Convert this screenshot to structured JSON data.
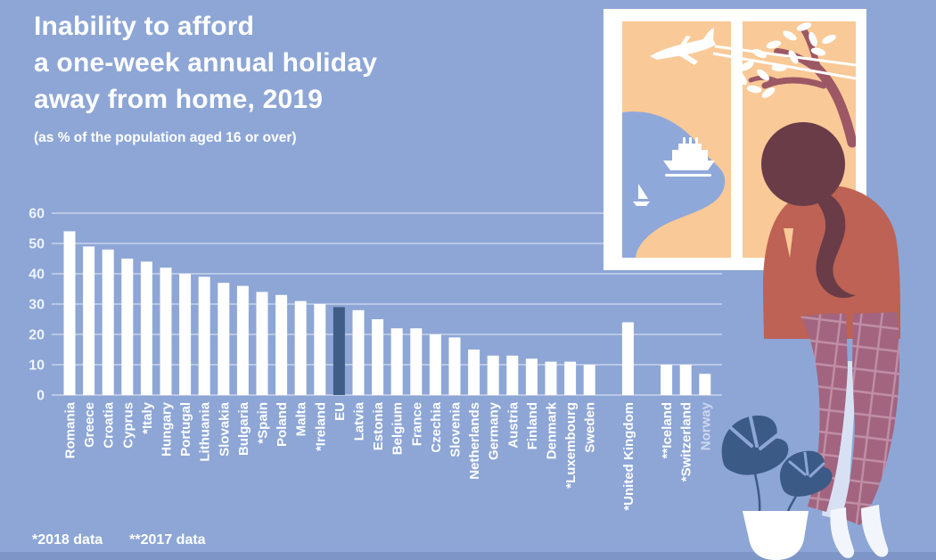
{
  "header": {
    "title_lines": [
      "Inability to afford",
      "a one-week annual holiday",
      "away from home, 2019"
    ],
    "subtitle": "(as % of the population aged 16 or over)"
  },
  "footnotes": {
    "note_2018": "*2018 data",
    "note_2017": "**2017 data"
  },
  "chart_data": {
    "type": "bar",
    "title": "Inability to afford a one-week annual holiday away from home, 2019",
    "xlabel": "",
    "ylabel": "% of the population aged 16 or over",
    "ylim": [
      0,
      60
    ],
    "yticks": [
      0,
      10,
      20,
      30,
      40,
      50,
      60
    ],
    "grid": true,
    "legend": "none",
    "categories": [
      "Romania",
      "Greece",
      "Croatia",
      "Cyprus",
      "*Italy",
      "Hungary",
      "Portugal",
      "Lithuania",
      "Slovakia",
      "Bulgaria",
      "*Spain",
      "Poland",
      "Malta",
      "*Ireland",
      "EU",
      "Latvia",
      "Estonia",
      "Belgium",
      "France",
      "Czechia",
      "Slovenia",
      "Netherlands",
      "Germany",
      "Austria",
      "Finland",
      "Denmark",
      "*Luxembourg",
      "Sweden",
      "*United Kingdom",
      "**Iceland",
      "*Switzerland",
      "Norway"
    ],
    "values": [
      54,
      49,
      48,
      45,
      44,
      42,
      40,
      39,
      37,
      36,
      34,
      33,
      31,
      30,
      29,
      28,
      25,
      22,
      22,
      20,
      19,
      15,
      13,
      13,
      12,
      11,
      11,
      10,
      24,
      10,
      10,
      7
    ],
    "highlighted_category": "EU",
    "gap_before": [
      "*United Kingdom",
      "**Iceland"
    ],
    "muted_label": "Norway",
    "bar_color": "#ffffff",
    "eu_bar_color": "#3f5d87"
  },
  "colors": {
    "background": "#8da6d6",
    "footer_strip": "#7e96c7",
    "gridline": "#c0cde9",
    "tick_text": "#eff3fb",
    "label_text": "#ffffff",
    "window_peach": "#f9c997",
    "window_frame": "#ffffff",
    "lake": "#8fa8da",
    "tree_branch": "#9c5864",
    "hair": "#693c48",
    "sweater": "#bd6254",
    "pants": "#a2647f",
    "pants_grid": "#c08fa7",
    "leg_gap": "#d8e1f3",
    "shoe": "#f2f6fc",
    "plant_leaf": "#3c5a86",
    "pot": "#ffffff"
  }
}
